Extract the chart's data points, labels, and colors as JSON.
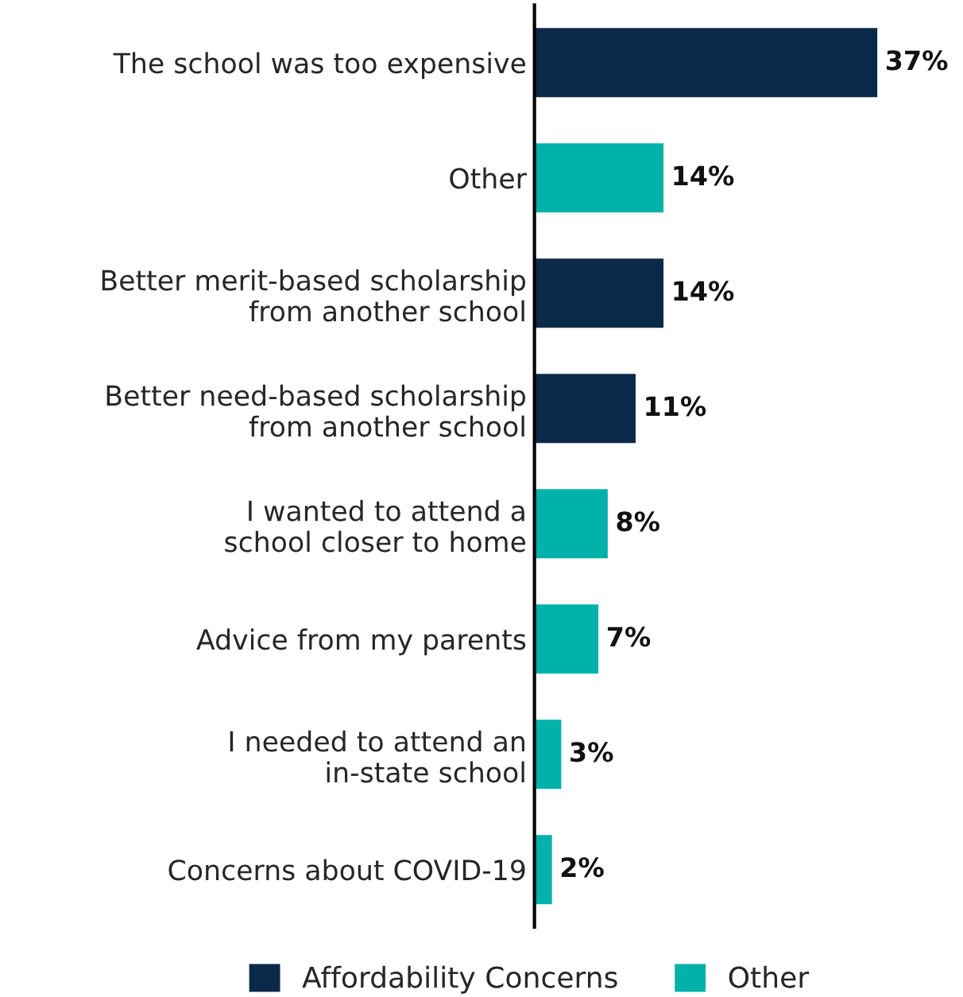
{
  "chart_data": {
    "type": "bar",
    "orientation": "horizontal",
    "categories": [
      "The school was too expensive",
      "Other",
      "Better merit-based scholarship\nfrom another school",
      "Better need-based scholarship\nfrom another school",
      "I wanted to attend a\nschool closer to home",
      "Advice from my parents",
      "I needed to attend an\nin-state school",
      "Concerns about COVID-19"
    ],
    "series": [
      {
        "name": "Affordability Concerns",
        "color": "#0b2a4a",
        "values": [
          37,
          null,
          14,
          11,
          null,
          null,
          null,
          null
        ],
        "value_labels": [
          "37%",
          null,
          "14%",
          "11%",
          null,
          null,
          null,
          null
        ]
      },
      {
        "name": "Other",
        "color": "#00b2a9",
        "values": [
          null,
          14,
          null,
          null,
          8,
          7,
          3,
          2
        ],
        "value_labels": [
          null,
          "14%",
          null,
          null,
          "8%",
          "7%",
          "3%",
          "2%"
        ]
      }
    ],
    "legend": "bottom",
    "grid": false,
    "tick_labels": "y"
  }
}
